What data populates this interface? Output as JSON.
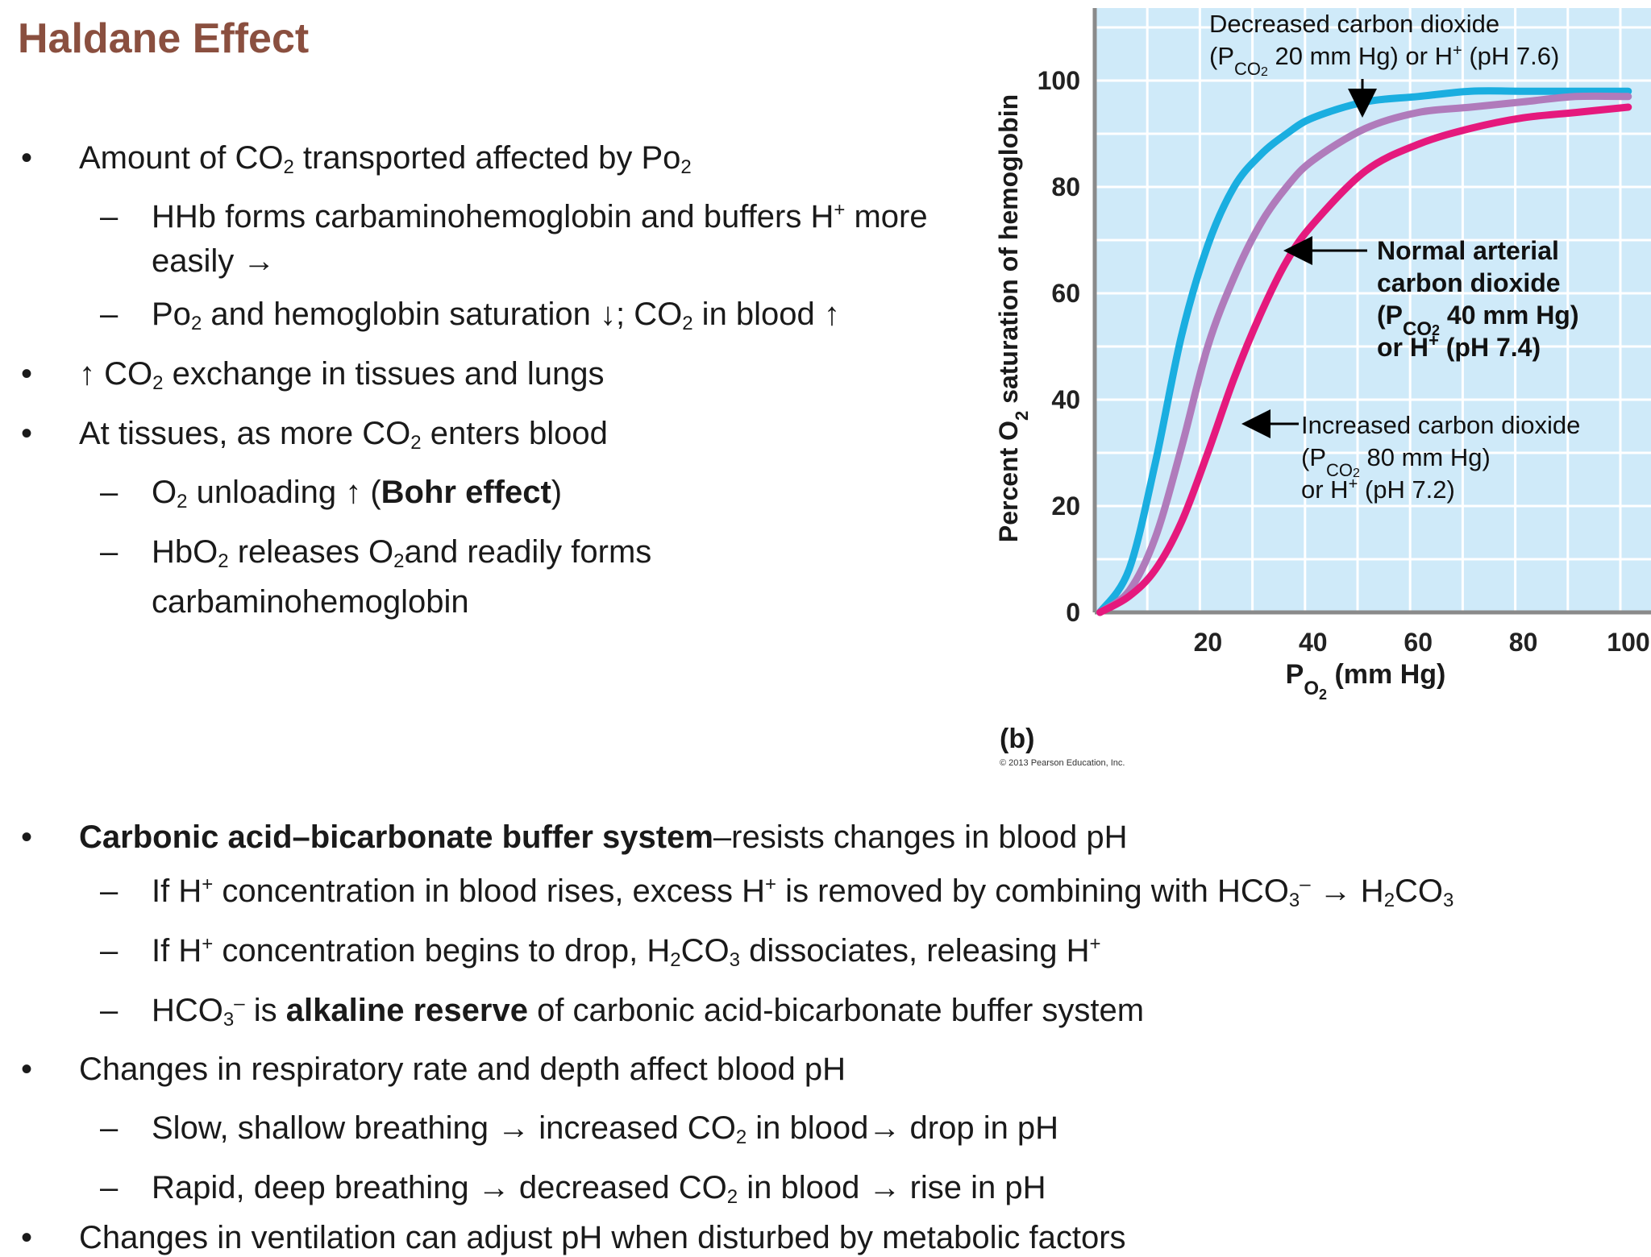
{
  "title": "Haldane Effect",
  "top_list": [
    {
      "level": 1,
      "marker": "•",
      "html": "Amount of CO<sub>2</sub> transported affected by Po<sub>2</sub>"
    },
    {
      "level": 2,
      "marker": "–",
      "html": "HHb forms carbaminohemoglobin and buffers H<sup>+</sup> more"
    },
    {
      "level": 2,
      "marker": "",
      "html": "easily →"
    },
    {
      "level": 2,
      "marker": "–",
      "html": "Po<sub>2</sub> and hemoglobin saturation ↓; CO<sub>2</sub> in blood ↑"
    },
    {
      "level": 1,
      "marker": "•",
      "html": "↑ CO<sub>2</sub> exchange in tissues and lungs"
    },
    {
      "level": 1,
      "marker": "•",
      "html": "At tissues, as more CO<sub>2</sub> enters blood"
    },
    {
      "level": 2,
      "marker": "–",
      "html": "O<sub>2</sub> unloading ↑ (<b>Bohr effect</b>)"
    },
    {
      "level": 2,
      "marker": "–",
      "html": "HbO<sub>2</sub> releases O<sub>2</sub>and readily forms"
    },
    {
      "level": 2,
      "marker": "",
      "html": "carbaminohemoglobin"
    }
  ],
  "bottom_list": [
    {
      "level": 1,
      "marker": "•",
      "html": "<b>Carbonic acid–bicarbonate buffer system</b>–resists changes in blood pH"
    },
    {
      "level": 2,
      "marker": "–",
      "html": "If H<sup>+</sup> concentration in blood rises, excess H<sup>+</sup> is removed by combining with HCO<sub>3</sub><sup>–</sup> → H<sub>2</sub>CO<sub>3</sub>"
    },
    {
      "level": 2,
      "marker": "–",
      "html": "If H<sup>+</sup> concentration begins to drop, H<sub>2</sub>CO<sub>3</sub> dissociates, releasing H<sup>+</sup>"
    },
    {
      "level": 2,
      "marker": "–",
      "html": "HCO<sub>3</sub><sup>–</sup> is <b>alkaline reserve</b> of carbonic acid-bicarbonate buffer system"
    },
    {
      "level": 1,
      "marker": "•",
      "html": "Changes in respiratory rate and depth affect blood pH"
    },
    {
      "level": 2,
      "marker": "–",
      "html": "Slow, shallow breathing → increased CO<sub>2</sub> in blood→ drop in pH"
    },
    {
      "level": 2,
      "marker": "–",
      "html": "Rapid, deep breathing → decreased CO<sub>2</sub> in blood → rise in pH"
    },
    {
      "level": 1,
      "marker": "•",
      "html": "Changes in ventilation can adjust pH when disturbed by metabolic factors"
    }
  ],
  "figure": {
    "panel_label": "(b)",
    "copyright": "© 2013 Pearson Education, Inc.",
    "ylabel_html": "Percent O<tspan baseline-shift='sub' font-size='22'>2</tspan> saturation of hemoglobin",
    "xlabel_html": "P<tspan baseline-shift='sub' font-size='24'>O</tspan><tspan baseline-shift='-20' font-size='18'>2</tspan> (mm Hg)",
    "annotations": {
      "decreased": [
        "Decreased carbon dioxide",
        "(P<tspan baseline-shift='sub' font-size='22'>CO</tspan><tspan baseline-shift='-14' font-size='16'>2</tspan> 20 mm Hg) or H<tspan baseline-shift='super' font-size='20'>+</tspan> (pH 7.6)"
      ],
      "normal": [
        "Normal arterial",
        "carbon dioxide",
        "(P<tspan baseline-shift='sub' font-size='24'>CO</tspan><tspan baseline-shift='-14' font-size='18'>2</tspan> 40 mm Hg)",
        "or H<tspan baseline-shift='super' font-size='22'>+</tspan> (pH 7.4)"
      ],
      "increased": [
        "Increased carbon dioxide",
        "(P<tspan baseline-shift='sub' font-size='22'>CO</tspan><tspan baseline-shift='-14' font-size='16'>2</tspan> 80 mm Hg)",
        "or H<tspan baseline-shift='super' font-size='20'>+</tspan> (pH 7.2)"
      ]
    }
  },
  "chart_data": {
    "type": "line",
    "xlabel": "Po2 (mm Hg)",
    "ylabel": "Percent O2 saturation of hemoglobin",
    "xlim": [
      0,
      100
    ],
    "ylim": [
      0,
      100
    ],
    "xticks": [
      20,
      40,
      60,
      80,
      100
    ],
    "yticks": [
      0,
      20,
      40,
      60,
      80,
      100
    ],
    "grid": true,
    "series": [
      {
        "name": "Decreased carbon dioxide (Pco2 20 mm Hg) or H+ (pH 7.6)",
        "color": "#1aaee0",
        "x": [
          0,
          5,
          10,
          15,
          20,
          25,
          30,
          35,
          40,
          50,
          60,
          70,
          80,
          90,
          100
        ],
        "y": [
          0,
          8,
          28,
          52,
          69,
          80,
          86,
          90,
          93,
          96,
          97,
          98,
          98,
          98,
          98
        ]
      },
      {
        "name": "Normal arterial carbon dioxide (Pco2 40 mm Hg) or H+ (pH 7.4)",
        "color": "#b07bbb",
        "x": [
          0,
          5,
          10,
          15,
          20,
          25,
          30,
          35,
          40,
          50,
          60,
          70,
          80,
          90,
          100
        ],
        "y": [
          0,
          4,
          14,
          31,
          50,
          63,
          73,
          80,
          85,
          91,
          94,
          95,
          96,
          97,
          97
        ]
      },
      {
        "name": "Increased carbon dioxide (Pco2 80 mm Hg) or H+ (pH 7.2)",
        "color": "#e5197d",
        "x": [
          0,
          5,
          10,
          15,
          20,
          25,
          30,
          35,
          40,
          50,
          60,
          70,
          80,
          90,
          100
        ],
        "y": [
          0,
          3,
          8,
          17,
          30,
          44,
          56,
          66,
          73,
          83,
          88,
          91,
          93,
          94,
          95
        ]
      }
    ]
  }
}
